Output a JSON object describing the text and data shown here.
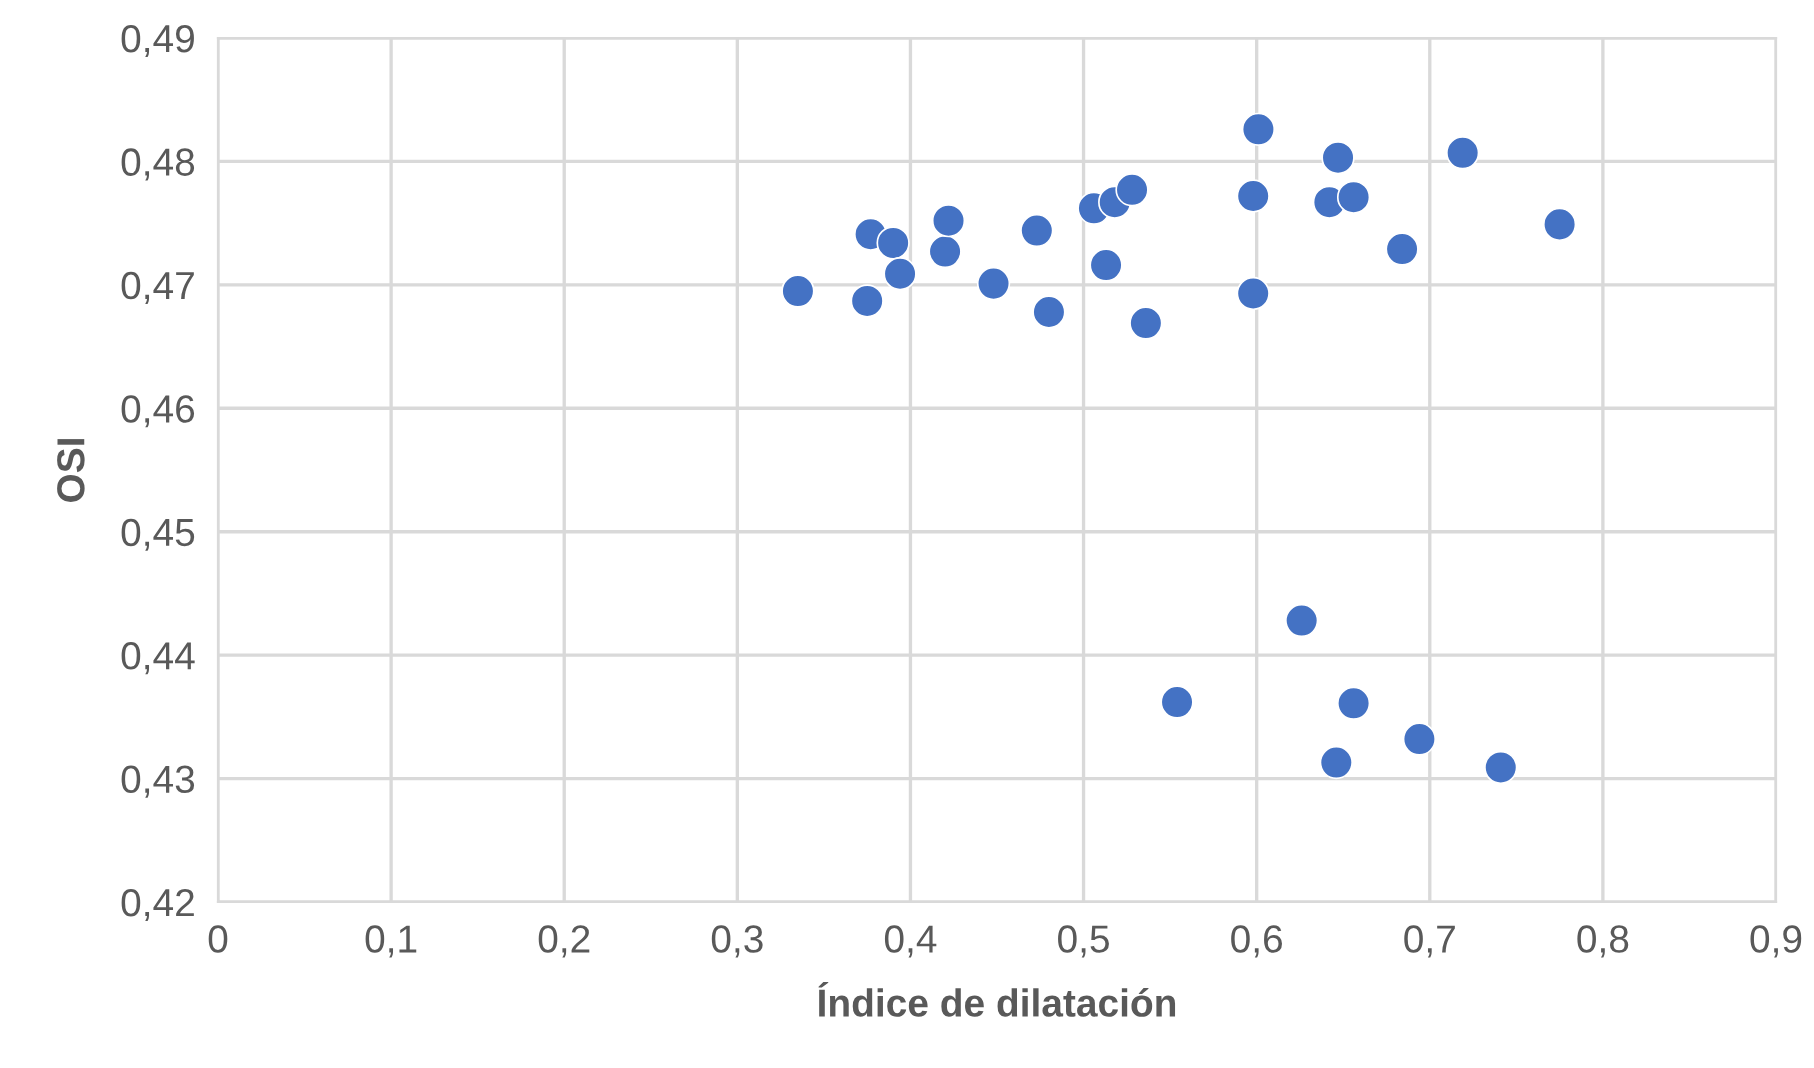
{
  "chart_data": {
    "type": "scatter",
    "xlabel": "Índice de dilatación",
    "ylabel": "OSI",
    "x": [
      0.335,
      0.375,
      0.377,
      0.39,
      0.394,
      0.42,
      0.422,
      0.448,
      0.473,
      0.48,
      0.506,
      0.513,
      0.518,
      0.528,
      0.536,
      0.554,
      0.598,
      0.598,
      0.601,
      0.626,
      0.642,
      0.646,
      0.647,
      0.656,
      0.656,
      0.684,
      0.694,
      0.719,
      0.741,
      0.775
    ],
    "values": [
      0.4695,
      0.4687,
      0.4741,
      0.4734,
      0.4709,
      0.4727,
      0.4752,
      0.4701,
      0.4744,
      0.4678,
      0.4762,
      0.4716,
      0.4767,
      0.4777,
      0.4669,
      0.4362,
      0.4772,
      0.4693,
      0.4826,
      0.4428,
      0.4767,
      0.4313,
      0.4803,
      0.4771,
      0.4361,
      0.4729,
      0.4332,
      0.4807,
      0.4309,
      0.4749
    ],
    "color": "#4472c4",
    "marker": "circle",
    "grid": true,
    "xlim": [
      0,
      0.9
    ],
    "xticks": [
      0,
      {
        "value": 0.1,
        "label": "0,1"
      },
      {
        "value": 0.2,
        "label": "0,2"
      },
      {
        "value": 0.3,
        "label": "0,3"
      },
      {
        "value": 0.4,
        "label": "0,4"
      },
      {
        "value": 0.5,
        "label": "0,5"
      },
      {
        "value": 0.6,
        "label": "0,6"
      },
      {
        "value": 0.7,
        "label": "0,7"
      },
      {
        "value": 0.8,
        "label": "0,8"
      },
      {
        "value": 0.9,
        "label": "0,9"
      }
    ],
    "ylim": [
      0.42,
      0.49
    ],
    "yticks": [
      {
        "value": 0.42,
        "label": "0,42"
      },
      {
        "value": 0.43,
        "label": "0,43"
      },
      {
        "value": 0.44,
        "label": "0,44"
      },
      {
        "value": 0.45,
        "label": "0,45"
      },
      {
        "value": 0.46,
        "label": "0,46"
      },
      {
        "value": 0.47,
        "label": "0,47"
      },
      {
        "value": 0.48,
        "label": "0,48"
      },
      {
        "value": 0.49,
        "label": "0,49"
      }
    ]
  }
}
